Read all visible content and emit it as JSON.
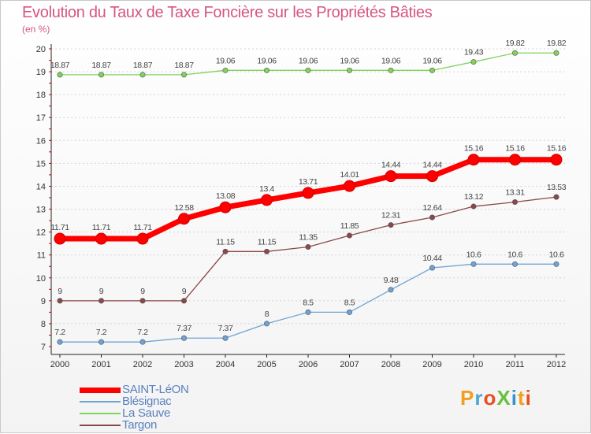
{
  "title": "Evolution du Taux de Taxe Foncière sur les Propriétés Bâties",
  "subtitle": "(en %)",
  "logo": "ProXiti",
  "chart_data": {
    "type": "line",
    "x": [
      "2000",
      "2001",
      "2002",
      "2003",
      "2004",
      "2005",
      "2006",
      "2007",
      "2008",
      "2009",
      "2010",
      "2011",
      "2012"
    ],
    "ylim": [
      7,
      20
    ],
    "yticks": [
      7,
      8,
      9,
      10,
      11,
      12,
      13,
      14,
      15,
      16,
      17,
      18,
      19,
      20
    ],
    "grid": "horizontal dashed",
    "legend_position": "bottom-left",
    "series": [
      {
        "name": "SAINT-LéON",
        "color": "#ff0000",
        "values": [
          11.71,
          11.71,
          11.71,
          12.58,
          13.08,
          13.4,
          13.71,
          14.01,
          14.44,
          14.44,
          15.16,
          15.16,
          15.16
        ],
        "labels": [
          "11.71",
          "11.71",
          "11.71",
          "12.58",
          "13.08",
          "13.4",
          "13.71",
          "14.01",
          "14.44",
          "14.44",
          "15.16",
          "15.16",
          "15.16"
        ]
      },
      {
        "name": "Blésignac",
        "color": "#6fa3d6",
        "values": [
          7.2,
          7.2,
          7.2,
          7.37,
          7.37,
          8,
          8.5,
          8.5,
          9.48,
          10.44,
          10.6,
          10.6,
          10.6
        ],
        "labels": [
          "7.2",
          "7.2",
          "7.2",
          "7.37",
          "7.37",
          "8",
          "8.5",
          "8.5",
          "9.48",
          "10.44",
          "10.6",
          "10.6",
          "10.6"
        ]
      },
      {
        "name": "La Sauve",
        "color": "#7fd35a",
        "values": [
          18.87,
          18.87,
          18.87,
          18.87,
          19.06,
          19.06,
          19.06,
          19.06,
          19.06,
          19.06,
          19.43,
          19.82,
          19.82
        ],
        "labels": [
          "18.87",
          "18.87",
          "18.87",
          "18.87",
          "19.06",
          "19.06",
          "19.06",
          "19.06",
          "19.06",
          "19.06",
          "19.43",
          "19.82",
          "19.82"
        ]
      },
      {
        "name": "Targon",
        "color": "#8b4848",
        "values": [
          9,
          9,
          9,
          9,
          11.15,
          11.15,
          11.35,
          11.85,
          12.31,
          12.64,
          13.12,
          13.31,
          13.53
        ],
        "labels": [
          "9",
          "9",
          "9",
          "9",
          "11.15",
          "11.15",
          "11.35",
          "11.85",
          "12.31",
          "12.64",
          "13.12",
          "13.31",
          "13.53"
        ]
      }
    ]
  }
}
